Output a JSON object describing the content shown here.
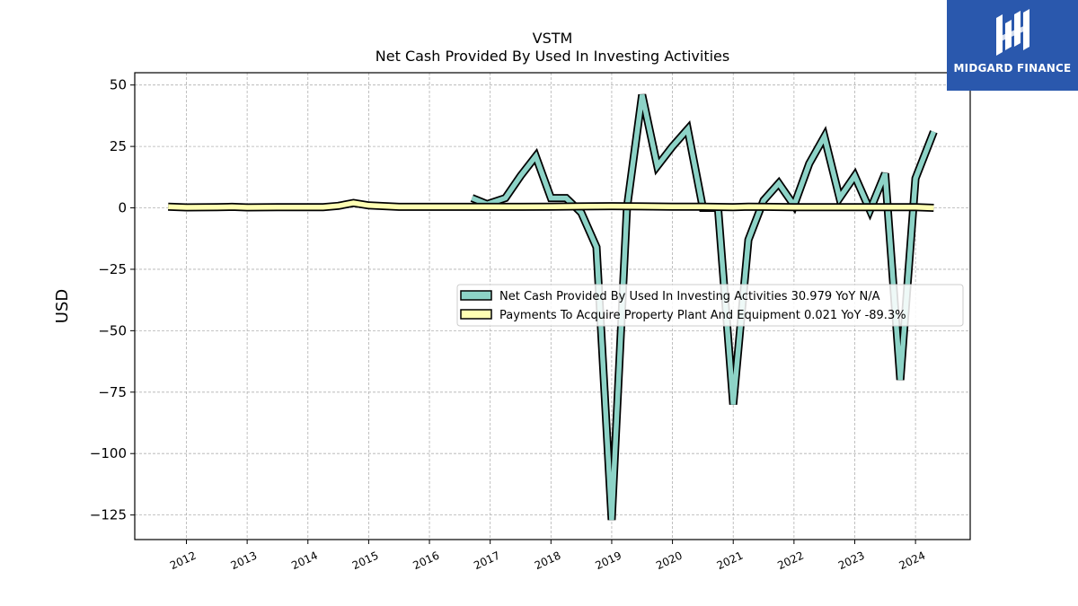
{
  "chart_data": {
    "type": "line",
    "title": "VSTM",
    "subtitle": "Net Cash Provided By Used In Investing Activities",
    "xlabel": "",
    "ylabel": "USD",
    "ylim": [
      -135,
      55
    ],
    "xlim": [
      2011.15,
      2024.9
    ],
    "yticks": [
      50,
      25,
      0,
      -25,
      -50,
      -75,
      -100,
      -125
    ],
    "ytick_labels": [
      "50",
      "25",
      "0",
      "−25",
      "−50",
      "−75",
      "−100",
      "−125"
    ],
    "xticks": [
      2012,
      2013,
      2014,
      2015,
      2016,
      2017,
      2018,
      2019,
      2020,
      2021,
      2022,
      2023,
      2024
    ],
    "xtick_labels": [
      "2012",
      "2013",
      "2014",
      "2015",
      "2016",
      "2017",
      "2018",
      "2019",
      "2020",
      "2021",
      "2022",
      "2023",
      "2024"
    ],
    "grid": true,
    "legend_position": "center-right",
    "series": [
      {
        "name": "Net Cash Provided By Used In Investing Activities",
        "legend_label": "Net Cash Provided By Used In Investing Activities  30.979 YoY N/A",
        "color": "#8dd3c7",
        "points": [
          [
            2016.7,
            4
          ],
          [
            2016.95,
            1.5
          ],
          [
            2017.25,
            4
          ],
          [
            2017.5,
            13
          ],
          [
            2017.75,
            21
          ],
          [
            2018.0,
            4
          ],
          [
            2018.25,
            4
          ],
          [
            2018.5,
            -2
          ],
          [
            2018.75,
            -16
          ],
          [
            2019.0,
            -127
          ],
          [
            2019.25,
            0
          ],
          [
            2019.5,
            46
          ],
          [
            2019.75,
            17
          ],
          [
            2020.0,
            25
          ],
          [
            2020.25,
            32
          ],
          [
            2020.5,
            0
          ],
          [
            2020.75,
            0
          ],
          [
            2021.0,
            -80
          ],
          [
            2021.25,
            -13
          ],
          [
            2021.5,
            3
          ],
          [
            2021.75,
            10
          ],
          [
            2022.0,
            1
          ],
          [
            2022.25,
            18
          ],
          [
            2022.5,
            29
          ],
          [
            2022.75,
            4
          ],
          [
            2023.0,
            13
          ],
          [
            2023.25,
            -1
          ],
          [
            2023.5,
            14
          ],
          [
            2023.75,
            -70
          ],
          [
            2024.0,
            12
          ],
          [
            2024.3,
            31
          ]
        ]
      },
      {
        "name": "Payments To Acquire Property Plant And Equipment",
        "legend_label": "Payments To Acquire Property Plant And Equipment  0.021 YoY -89.3%",
        "color": "#ffffb3",
        "points": [
          [
            2011.7,
            0.5
          ],
          [
            2012.0,
            0.2
          ],
          [
            2012.5,
            0.3
          ],
          [
            2012.75,
            0.4
          ],
          [
            2013.0,
            0.2
          ],
          [
            2013.5,
            0.3
          ],
          [
            2014.0,
            0.3
          ],
          [
            2014.25,
            0.3
          ],
          [
            2014.5,
            0.8
          ],
          [
            2014.75,
            2.0
          ],
          [
            2015.0,
            1.0
          ],
          [
            2015.5,
            0.4
          ],
          [
            2016.0,
            0.4
          ],
          [
            2016.5,
            0.4
          ],
          [
            2017.0,
            0.4
          ],
          [
            2017.5,
            0.4
          ],
          [
            2018.0,
            0.5
          ],
          [
            2018.5,
            0.6
          ],
          [
            2019.0,
            0.7
          ],
          [
            2019.5,
            0.6
          ],
          [
            2020.0,
            0.5
          ],
          [
            2020.5,
            0.5
          ],
          [
            2021.0,
            0.3
          ],
          [
            2021.25,
            0.5
          ],
          [
            2021.5,
            0.4
          ],
          [
            2022.0,
            0.3
          ],
          [
            2022.5,
            0.3
          ],
          [
            2023.0,
            0.3
          ],
          [
            2023.5,
            0.3
          ],
          [
            2024.0,
            0.3
          ],
          [
            2024.3,
            0.02
          ]
        ]
      }
    ]
  },
  "logo": {
    "brand": "MIDGARD FINANCE",
    "color": "#2a58ad"
  }
}
